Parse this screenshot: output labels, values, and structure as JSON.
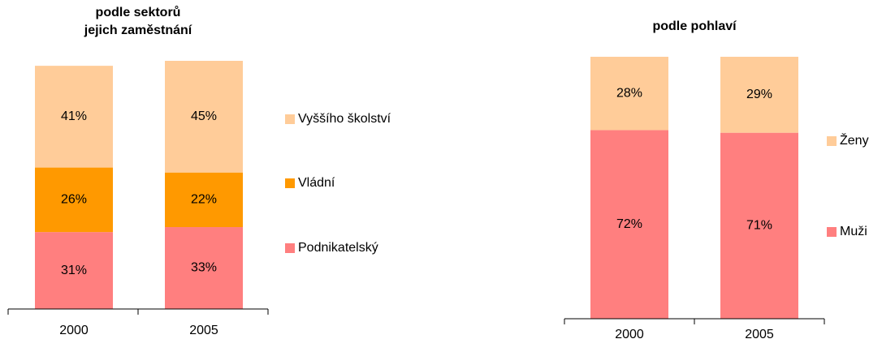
{
  "chart_data": [
    {
      "type": "stacked_bar",
      "title": [
        "podle sektorů",
        "jejich zaměstnání"
      ],
      "categories": [
        "2000",
        "2005"
      ],
      "ylim": [
        0,
        100
      ],
      "series": [
        {
          "name": "Podnikatelský",
          "color": "#ff7f7f",
          "values": [
            31,
            33
          ],
          "value_labels": [
            "31%",
            "33%"
          ]
        },
        {
          "name": "Vládní",
          "color": "#ff9900",
          "values": [
            26,
            22
          ],
          "value_labels": [
            "26%",
            "22%"
          ]
        },
        {
          "name": "Vyššího školství",
          "color": "#ffcc99",
          "values": [
            41,
            45
          ],
          "value_labels": [
            "41%",
            "45%"
          ]
        }
      ]
    },
    {
      "type": "stacked_bar",
      "title": [
        "podle pohlaví"
      ],
      "categories": [
        "2000",
        "2005"
      ],
      "ylim": [
        0,
        100
      ],
      "series": [
        {
          "name": "Muži",
          "color": "#ff7f7f",
          "values": [
            72,
            71
          ],
          "value_labels": [
            "72%",
            "71%"
          ]
        },
        {
          "name": "Ženy",
          "color": "#ffcc99",
          "values": [
            28,
            29
          ],
          "value_labels": [
            "28%",
            "29%"
          ]
        }
      ]
    }
  ]
}
